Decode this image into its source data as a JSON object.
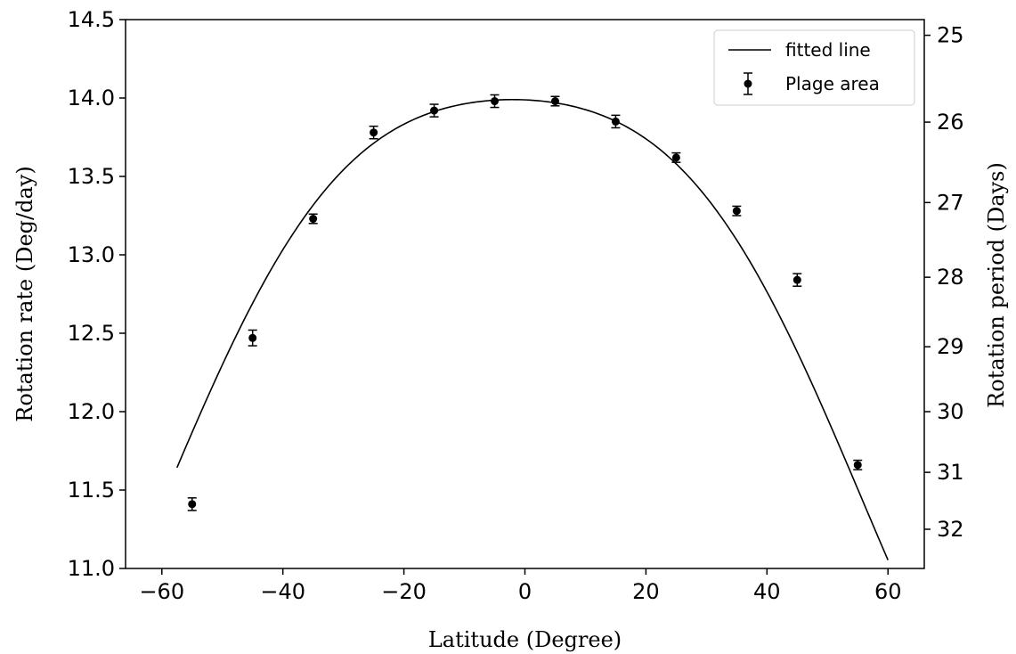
{
  "chart_data": {
    "type": "scatter",
    "xlabel": "Latitude (Degree)",
    "ylabel": "Rotation rate (Deg/day)",
    "y2label": "Rotation period (Days)",
    "xlim": [
      -66,
      66
    ],
    "ylim": [
      11.0,
      14.5
    ],
    "xticks": [
      -60,
      -40,
      -20,
      0,
      20,
      40,
      60
    ],
    "yticks": [
      11.0,
      11.5,
      12.0,
      12.5,
      13.0,
      13.5,
      14.0,
      14.5
    ],
    "yticks_labels": [
      "11.0",
      "11.5",
      "12.0",
      "12.5",
      "13.0",
      "13.5",
      "14.0",
      "14.5"
    ],
    "y2ticks": [
      25,
      26,
      27,
      28,
      29,
      30,
      31,
      32
    ],
    "grid": false,
    "legend": {
      "position": "top-right",
      "entries": [
        "fitted line",
        "Plage area"
      ]
    },
    "fitted_line": {
      "name": "fitted line",
      "x_range": [
        -57.5,
        60
      ],
      "equation_note": "rate = A + B*sin^2(lat) + C*sin^4(lat)",
      "A": 13.99,
      "B": -1.35,
      "C": -3.1,
      "x_shift": -2.0
    },
    "series": [
      {
        "name": "Plage area",
        "points": [
          {
            "x": -55,
            "y": 11.41,
            "err": 0.04
          },
          {
            "x": -45,
            "y": 12.47,
            "err": 0.05
          },
          {
            "x": -35,
            "y": 13.23,
            "err": 0.03
          },
          {
            "x": -25,
            "y": 13.78,
            "err": 0.04
          },
          {
            "x": -15,
            "y": 13.92,
            "err": 0.04
          },
          {
            "x": -5,
            "y": 13.98,
            "err": 0.04
          },
          {
            "x": 5,
            "y": 13.98,
            "err": 0.03
          },
          {
            "x": 15,
            "y": 13.85,
            "err": 0.04
          },
          {
            "x": 25,
            "y": 13.62,
            "err": 0.03
          },
          {
            "x": 35,
            "y": 13.28,
            "err": 0.03
          },
          {
            "x": 45,
            "y": 12.84,
            "err": 0.04
          },
          {
            "x": 55,
            "y": 11.66,
            "err": 0.03
          }
        ]
      }
    ]
  }
}
